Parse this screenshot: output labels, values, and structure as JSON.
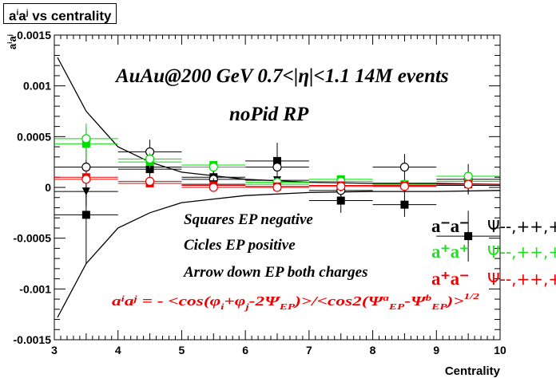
{
  "chart_data": {
    "type": "scatter",
    "title": "a^i a^j vs centrality",
    "xlabel": "Centrality",
    "ylabel": "a^i a^j",
    "xlim": [
      3,
      10
    ],
    "ylim": [
      -0.0015,
      0.0015
    ],
    "x_ticks": [
      "3",
      "4",
      "5",
      "6",
      "7",
      "8",
      "9",
      "10"
    ],
    "y_ticks": [
      "-0.0015",
      "-0.001",
      "-0.0005",
      "0",
      "0.0005",
      "0.001",
      "0.0015"
    ],
    "annotations": {
      "line1": "AuAu@200 GeV 0.7<|η|<1.1 14M events",
      "line2": "noPid RP",
      "leg1": "Squares EP negative",
      "leg2": "Cicles EP positive",
      "leg3": "Arrow down EP both charges",
      "formula": "a^i a^j = - <cos(φ_i+φ_j-2Ψ_EP)>/<cos2(Ψ^a_EP-Ψ^b_EP)>^1/2"
    },
    "legend_labels": {
      "a_minus_minus": "a⁻a⁻",
      "a_plus_plus": "a⁺a⁺",
      "a_plus_minus": "a⁺a⁻",
      "psi_suffix": "Ψ--,++,+-"
    },
    "series": [
      {
        "name": "a-a- squares",
        "color": "#000000",
        "marker": "square",
        "x": [
          3.5,
          4.5,
          5.5,
          6.5,
          7.5,
          8.5,
          9.5
        ],
        "y": [
          -0.00027,
          0.00018,
          0.0001,
          0.00026,
          -0.00013,
          -0.00017,
          -0.00048
        ],
        "err": [
          0.00048,
          0.00012,
          0.0001,
          0.00018,
          0.00012,
          0.00012,
          0.00025
        ]
      },
      {
        "name": "a-a- circles",
        "color": "#000000",
        "marker": "open-circle",
        "x": [
          3.5,
          4.5,
          5.5,
          6.5,
          7.5,
          8.5,
          9.5
        ],
        "y": [
          0.0002,
          0.00035,
          8e-05,
          0.0002,
          -3e-05,
          0.0002,
          8e-05
        ],
        "err": [
          0.0003,
          0.00012,
          0.0001,
          0.00015,
          0.00012,
          0.00013,
          0.00015
        ]
      },
      {
        "name": "a-a- arrows",
        "color": "#000000",
        "marker": "triangle-down",
        "x": [
          3.5,
          4.5,
          5.5,
          6.5,
          7.5,
          8.5,
          9.5
        ],
        "y": [
          -4e-05,
          0.0002,
          3e-05,
          7e-05,
          2e-05,
          1e-05,
          2e-05
        ],
        "err": [
          0.00014,
          7e-05,
          6e-05,
          8e-05,
          6e-05,
          7e-05,
          8e-05
        ]
      },
      {
        "name": "a+a+ squares",
        "color": "#00dd00",
        "marker": "square",
        "x": [
          3.5,
          4.5,
          5.5,
          6.5,
          7.5,
          8.5,
          9.5
        ],
        "y": [
          0.00043,
          0.00025,
          0.00022,
          3e-05,
          8e-05,
          3e-05,
          6e-05
        ],
        "err": [
          0.00016,
          6e-05,
          4e-05,
          4e-05,
          3e-05,
          3e-05,
          3e-05
        ]
      },
      {
        "name": "a+a+ circles",
        "color": "#00dd00",
        "marker": "open-circle",
        "x": [
          3.5,
          4.5,
          5.5,
          6.5,
          7.5,
          8.5,
          9.5
        ],
        "y": [
          0.00048,
          0.00028,
          0.0002,
          5e-05,
          6e-05,
          3e-05,
          0.00011
        ],
        "err": [
          0.00015,
          6e-05,
          4e-05,
          4e-05,
          3e-05,
          3e-05,
          3e-05
        ]
      },
      {
        "name": "a+a- squares",
        "color": "#ee0000",
        "marker": "square",
        "x": [
          3.5,
          4.5,
          5.5,
          6.5,
          7.5,
          8.5,
          9.5
        ],
        "y": [
          0.0001,
          4e-05,
          2e-05,
          1e-05,
          2e-05,
          2e-05,
          3e-05
        ],
        "err": [
          7e-05,
          3e-05,
          2e-05,
          2e-05,
          2e-05,
          2e-05,
          2e-05
        ]
      },
      {
        "name": "a+a- circles",
        "color": "#ee0000",
        "marker": "open-circle",
        "x": [
          3.5,
          4.5,
          5.5,
          6.5,
          7.5,
          8.5,
          9.5
        ],
        "y": [
          8e-05,
          6e-05,
          0.0,
          0.0,
          1e-05,
          1e-05,
          3e-05
        ],
        "err": [
          7e-05,
          3e-05,
          2e-05,
          2e-05,
          2e-05,
          2e-05,
          2e-05
        ]
      }
    ],
    "curves": [
      {
        "name": "upper envelope",
        "color": "#000000",
        "x": [
          3.05,
          3.5,
          4,
          4.5,
          5,
          6,
          7,
          8,
          9,
          10
        ],
        "y": [
          0.00128,
          0.00075,
          0.0004,
          0.00025,
          0.00015,
          8e-05,
          5e-05,
          4e-05,
          4e-05,
          3e-05
        ]
      },
      {
        "name": "lower envelope",
        "color": "#000000",
        "x": [
          3.05,
          3.5,
          4,
          4.5,
          5,
          6,
          7,
          8,
          9,
          10
        ],
        "y": [
          -0.00128,
          -0.00075,
          -0.0004,
          -0.00025,
          -0.00015,
          -8e-05,
          -5e-05,
          -4e-05,
          -4e-05,
          -3e-05
        ]
      }
    ],
    "grid": false
  }
}
